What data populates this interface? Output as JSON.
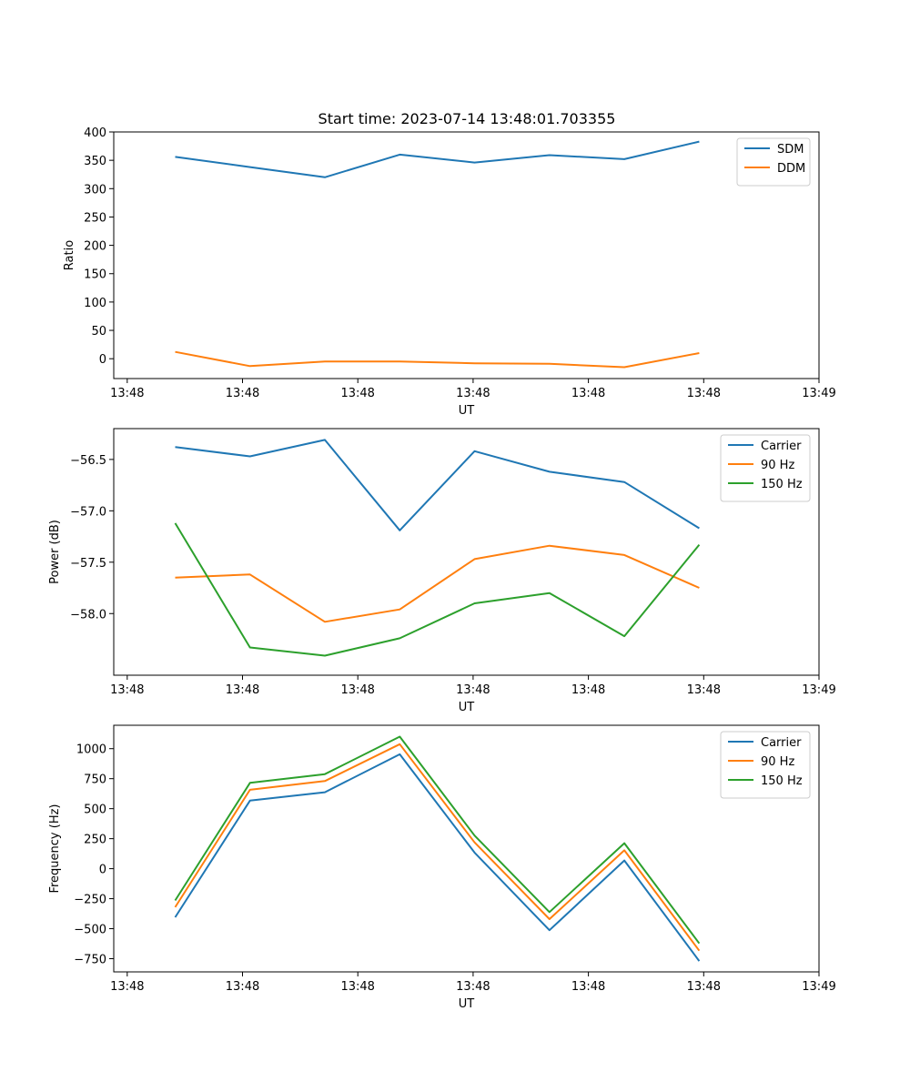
{
  "chart_data": [
    {
      "type": "line",
      "title": "Start time: 2023-07-14 13:48:01.703355",
      "xlabel": "UT",
      "ylabel": "Ratio",
      "x": [
        1,
        2,
        3,
        4,
        5,
        6,
        7,
        8
      ],
      "xlim": [
        0.18,
        9.6
      ],
      "xticks": [
        0.36,
        1.9,
        3.44,
        4.98,
        6.52,
        8.06,
        9.6
      ],
      "xtick_labels": [
        "13:48",
        "13:48",
        "13:48",
        "13:48",
        "13:48",
        "13:48",
        "13:49"
      ],
      "ylim": [
        -35,
        400
      ],
      "yticks": [
        0,
        50,
        100,
        150,
        200,
        250,
        300,
        350,
        400
      ],
      "ytick_labels": [
        "0",
        "50",
        "100",
        "150",
        "200",
        "250",
        "300",
        "350",
        "400"
      ],
      "legend_position": "upper-right",
      "series": [
        {
          "name": "SDM",
          "color": "#1f77b4",
          "values": [
            356,
            338,
            320,
            360,
            346,
            359,
            352,
            383
          ]
        },
        {
          "name": "DDM",
          "color": "#ff7f0e",
          "values": [
            12,
            -13,
            -5,
            -5,
            -8,
            -9,
            -15,
            10
          ]
        }
      ]
    },
    {
      "type": "line",
      "title": "",
      "xlabel": "UT",
      "ylabel": "Power (dB)",
      "x": [
        1,
        2,
        3,
        4,
        5,
        6,
        7,
        8
      ],
      "xlim": [
        0.18,
        9.6
      ],
      "xticks": [
        0.36,
        1.9,
        3.44,
        4.98,
        6.52,
        8.06,
        9.6
      ],
      "xtick_labels": [
        "13:48",
        "13:48",
        "13:48",
        "13:48",
        "13:48",
        "13:48",
        "13:49"
      ],
      "ylim": [
        -58.6,
        -56.2
      ],
      "yticks": [
        -56.5,
        -57.0,
        -57.5,
        -58.0
      ],
      "ytick_labels": [
        "−56.5",
        "−57.0",
        "−57.5",
        "−58.0"
      ],
      "legend_position": "upper-right",
      "series": [
        {
          "name": "Carrier",
          "color": "#1f77b4",
          "values": [
            -56.38,
            -56.47,
            -56.31,
            -57.19,
            -56.42,
            -56.62,
            -56.72,
            -57.17
          ]
        },
        {
          "name": "90 Hz",
          "color": "#ff7f0e",
          "values": [
            -57.65,
            -57.62,
            -58.08,
            -57.96,
            -57.47,
            -57.34,
            -57.43,
            -57.75
          ]
        },
        {
          "name": "150 Hz",
          "color": "#2ca02c",
          "values": [
            -57.12,
            -58.33,
            -58.41,
            -58.24,
            -57.9,
            -57.8,
            -58.22,
            -57.33
          ]
        }
      ]
    },
    {
      "type": "line",
      "title": "",
      "xlabel": "UT",
      "ylabel": "Frequency (Hz)",
      "x": [
        1,
        2,
        3,
        4,
        5,
        6,
        7,
        8
      ],
      "xlim": [
        0.18,
        9.6
      ],
      "xticks": [
        0.36,
        1.9,
        3.44,
        4.98,
        6.52,
        8.06,
        9.6
      ],
      "xtick_labels": [
        "13:48",
        "13:48",
        "13:48",
        "13:48",
        "13:48",
        "13:48",
        "13:49"
      ],
      "ylim": [
        -860,
        1195
      ],
      "yticks": [
        -750,
        -500,
        -250,
        0,
        250,
        500,
        750,
        1000
      ],
      "ytick_labels": [
        "−750",
        "−500",
        "−250",
        "0",
        "250",
        "500",
        "750",
        "1000"
      ],
      "legend_position": "upper-right",
      "series": [
        {
          "name": "Carrier",
          "color": "#1f77b4",
          "values": [
            -405,
            567,
            637,
            953,
            134,
            -513,
            68,
            -770
          ]
        },
        {
          "name": "90 Hz",
          "color": "#ff7f0e",
          "values": [
            -321,
            657,
            730,
            1037,
            219,
            -420,
            153,
            -683
          ]
        },
        {
          "name": "150 Hz",
          "color": "#2ca02c",
          "values": [
            -265,
            715,
            788,
            1100,
            276,
            -362,
            212,
            -623
          ]
        }
      ]
    }
  ]
}
